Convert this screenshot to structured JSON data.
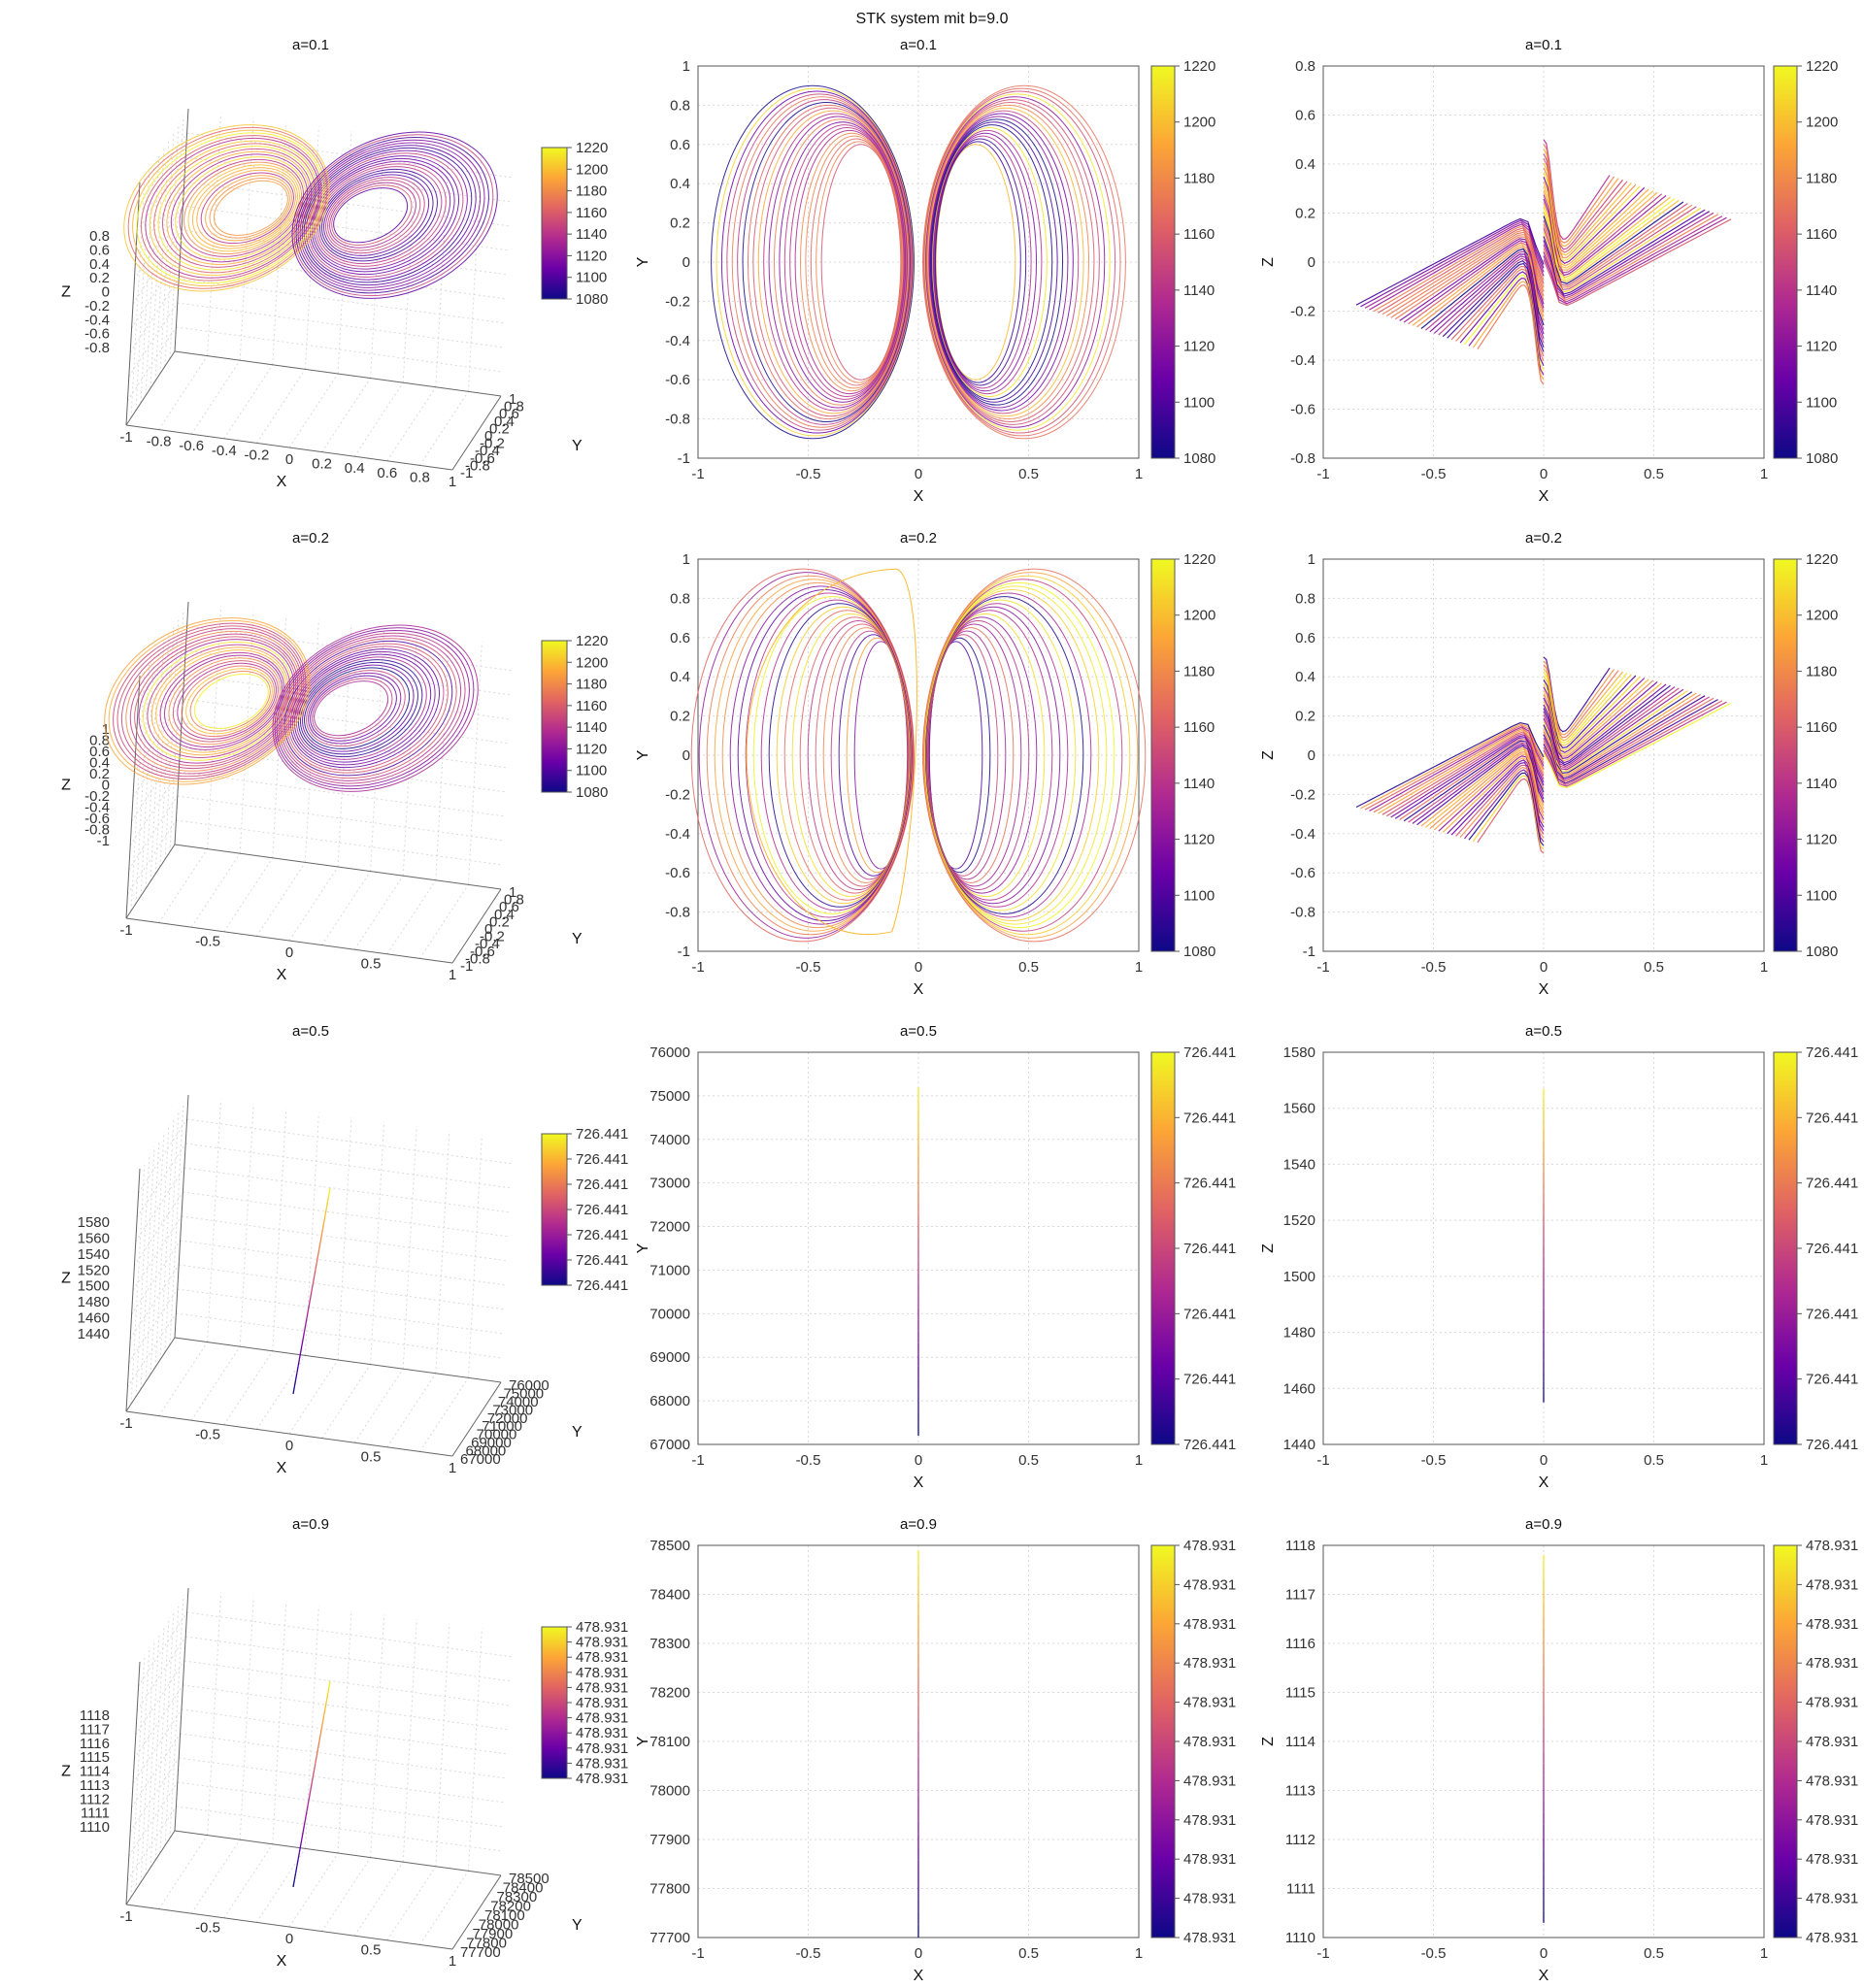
{
  "figure": {
    "title": "STK system mit b=9.0",
    "colormap_stops": [
      "#0d0887",
      "#6a00a8",
      "#b12a90",
      "#e16462",
      "#fca636",
      "#f0f921"
    ]
  },
  "chart_data": [
    {
      "row": 0,
      "a_label": "a=0.1",
      "type": "line",
      "pattern": "double-scroll",
      "color_ticks": [
        "1080",
        "1100",
        "1120",
        "1140",
        "1160",
        "1180",
        "1200",
        "1220"
      ],
      "plot3d": {
        "title": "a=0.1",
        "xlabel": "X",
        "ylabel": "Y",
        "zlabel": "Z",
        "xticks": [
          "-1",
          "-0.8",
          "-0.6",
          "-0.4",
          "-0.2",
          "0",
          "0.2",
          "0.4",
          "0.6",
          "0.8",
          "1"
        ],
        "yticks": [
          "-1",
          "-0.8",
          "-0.6",
          "-0.4",
          "-0.2",
          "0",
          "0.2",
          "0.4",
          "0.6",
          "0.8",
          "1"
        ],
        "zticks": [
          "-0.8",
          "-0.6",
          "-0.4",
          "-0.2",
          "0",
          "0.2",
          "0.4",
          "0.6",
          "0.8"
        ]
      },
      "xy": {
        "title": "a=0.1",
        "xlabel": "X",
        "ylabel": "Y",
        "xticks": [
          "-1",
          "-0.5",
          "0",
          "0.5",
          "1"
        ],
        "yticks": [
          "-1",
          "-0.8",
          "-0.6",
          "-0.4",
          "-0.2",
          "0",
          "0.2",
          "0.4",
          "0.6",
          "0.8",
          "1"
        ],
        "xlim": [
          -1,
          1
        ],
        "ylim": [
          -1,
          1
        ]
      },
      "xz": {
        "title": "a=0.1",
        "xlabel": "X",
        "ylabel": "Z",
        "xticks": [
          "-1",
          "-0.5",
          "0",
          "0.5",
          "1"
        ],
        "yticks": [
          "-0.8",
          "-0.6",
          "-0.4",
          "-0.2",
          "0",
          "0.2",
          "0.4",
          "0.6",
          "0.8"
        ],
        "xlim": [
          -1,
          1
        ],
        "ylim": [
          -0.8,
          0.8
        ]
      }
    },
    {
      "row": 1,
      "a_label": "a=0.2",
      "type": "line",
      "pattern": "double-scroll",
      "color_ticks": [
        "1080",
        "1100",
        "1120",
        "1140",
        "1160",
        "1180",
        "1200",
        "1220"
      ],
      "plot3d": {
        "title": "a=0.2",
        "xlabel": "X",
        "ylabel": "Y",
        "zlabel": "Z",
        "xticks": [
          "-1",
          "-0.5",
          "0",
          "0.5",
          "1"
        ],
        "yticks": [
          "-1",
          "-0.8",
          "-0.6",
          "-0.4",
          "-0.2",
          "0",
          "0.2",
          "0.4",
          "0.6",
          "0.8",
          "1"
        ],
        "zticks": [
          "-1",
          "-0.8",
          "-0.6",
          "-0.4",
          "-0.2",
          "0",
          "0.2",
          "0.4",
          "0.6",
          "0.8",
          "1"
        ]
      },
      "xy": {
        "title": "a=0.2",
        "xlabel": "X",
        "ylabel": "Y",
        "xticks": [
          "-1",
          "-0.5",
          "0",
          "0.5",
          "1"
        ],
        "yticks": [
          "-1",
          "-0.8",
          "-0.6",
          "-0.4",
          "-0.2",
          "0",
          "0.2",
          "0.4",
          "0.6",
          "0.8",
          "1"
        ],
        "xlim": [
          -1,
          1
        ],
        "ylim": [
          -1,
          1
        ]
      },
      "xz": {
        "title": "a=0.2",
        "xlabel": "X",
        "ylabel": "Z",
        "xticks": [
          "-1",
          "-0.5",
          "0",
          "0.5",
          "1"
        ],
        "yticks": [
          "-1",
          "-0.8",
          "-0.6",
          "-0.4",
          "-0.2",
          "0",
          "0.2",
          "0.4",
          "0.6",
          "0.8",
          "1"
        ],
        "xlim": [
          -1,
          1
        ],
        "ylim": [
          -1,
          1
        ]
      }
    },
    {
      "row": 2,
      "a_label": "a=0.5",
      "type": "line",
      "pattern": "vertical",
      "color_ticks": [
        "726.441",
        "726.441",
        "726.441",
        "726.441",
        "726.441",
        "726.441",
        "726.441"
      ],
      "plot3d": {
        "title": "a=0.5",
        "xlabel": "X",
        "ylabel": "Y",
        "zlabel": "Z",
        "xticks": [
          "-1",
          "-0.5",
          "0",
          "0.5",
          "1"
        ],
        "yticks": [
          "67000",
          "68000",
          "69000",
          "70000",
          "71000",
          "72000",
          "73000",
          "74000",
          "75000",
          "76000"
        ],
        "zticks": [
          "1440",
          "1460",
          "1480",
          "1500",
          "1520",
          "1540",
          "1560",
          "1580"
        ]
      },
      "xy": {
        "title": "a=0.5",
        "xlabel": "X",
        "ylabel": "Y",
        "xticks": [
          "-1",
          "-0.5",
          "0",
          "0.5",
          "1"
        ],
        "yticks": [
          "67000",
          "68000",
          "69000",
          "70000",
          "71000",
          "72000",
          "73000",
          "74000",
          "75000",
          "76000"
        ],
        "xlim": [
          -1,
          1
        ],
        "ylim": [
          67000,
          76000
        ],
        "line": {
          "x": 0,
          "y_from": 67200,
          "y_to": 75200
        }
      },
      "xz": {
        "title": "a=0.5",
        "xlabel": "X",
        "ylabel": "Z",
        "xticks": [
          "-1",
          "-0.5",
          "0",
          "0.5",
          "1"
        ],
        "yticks": [
          "1440",
          "1460",
          "1480",
          "1500",
          "1520",
          "1540",
          "1560",
          "1580"
        ],
        "xlim": [
          -1,
          1
        ],
        "ylim": [
          1440,
          1580
        ],
        "line": {
          "x": 0,
          "y_from": 1455,
          "y_to": 1567
        }
      }
    },
    {
      "row": 3,
      "a_label": "a=0.9",
      "type": "line",
      "pattern": "vertical",
      "color_ticks": [
        "478.931",
        "478.931",
        "478.931",
        "478.931",
        "478.931",
        "478.931",
        "478.931",
        "478.931",
        "478.931",
        "478.931",
        "478.931"
      ],
      "plot3d": {
        "title": "a=0.9",
        "xlabel": "X",
        "ylabel": "Y",
        "zlabel": "Z",
        "xticks": [
          "-1",
          "-0.5",
          "0",
          "0.5",
          "1"
        ],
        "yticks": [
          "77700",
          "77800",
          "77900",
          "78000",
          "78100",
          "78200",
          "78300",
          "78400",
          "78500"
        ],
        "zticks": [
          "1110",
          "1111",
          "1112",
          "1113",
          "1114",
          "1115",
          "1116",
          "1117",
          "1118"
        ]
      },
      "xy": {
        "title": "a=0.9",
        "xlabel": "X",
        "ylabel": "Y",
        "xticks": [
          "-1",
          "-0.5",
          "0",
          "0.5",
          "1"
        ],
        "yticks": [
          "77700",
          "77800",
          "77900",
          "78000",
          "78100",
          "78200",
          "78300",
          "78400",
          "78500"
        ],
        "xlim": [
          -1,
          1
        ],
        "ylim": [
          77700,
          78500
        ],
        "line": {
          "x": 0,
          "y_from": 77700,
          "y_to": 78490
        }
      },
      "xz": {
        "title": "a=0.9",
        "xlabel": "X",
        "ylabel": "Z",
        "xticks": [
          "-1",
          "-0.5",
          "0",
          "0.5",
          "1"
        ],
        "yticks": [
          "1110",
          "1111",
          "1112",
          "1113",
          "1114",
          "1115",
          "1116",
          "1117",
          "1118"
        ],
        "xlim": [
          -1,
          1
        ],
        "ylim": [
          1110,
          1118
        ],
        "line": {
          "x": 0,
          "y_from": 1110.3,
          "y_to": 1117.8
        }
      }
    }
  ]
}
